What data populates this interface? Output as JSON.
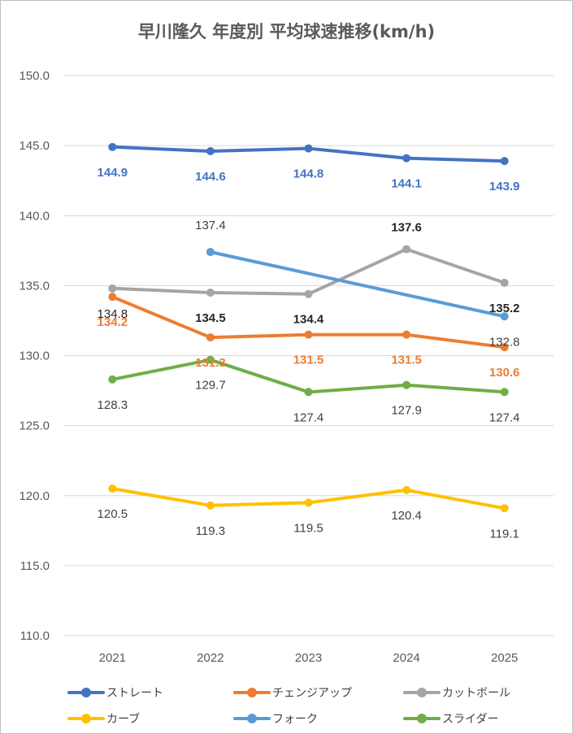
{
  "chart_data": {
    "type": "line",
    "title": "早川隆久 年度別 平均球速推移(km/h)",
    "categories": [
      "2021",
      "2022",
      "2023",
      "2024",
      "2025"
    ],
    "ylim": [
      110,
      150
    ],
    "yticks": [
      "110.0",
      "115.0",
      "120.0",
      "125.0",
      "130.0",
      "135.0",
      "140.0",
      "145.0",
      "150.0"
    ],
    "grid": true,
    "legend_position": "bottom",
    "series": [
      {
        "name": "ストレート",
        "color": "#4472c4",
        "values": [
          144.9,
          144.6,
          144.8,
          144.1,
          143.9
        ],
        "labels": [
          "144.9",
          "144.6",
          "144.8",
          "144.1",
          "143.9"
        ],
        "label_color": "#4472c4"
      },
      {
        "name": "チェンジアップ",
        "color": "#ed7d31",
        "values": [
          134.2,
          131.3,
          131.5,
          131.5,
          130.6
        ],
        "labels": [
          "134.2",
          "131.3",
          "131.5",
          "131.5",
          "130.6"
        ],
        "label_color": "#ed7d31"
      },
      {
        "name": "カットボール",
        "color": "#a5a5a5",
        "values": [
          134.8,
          134.5,
          134.4,
          137.6,
          135.2
        ],
        "labels": [
          "134.8",
          "134.5",
          "134.4",
          "137.6",
          "135.2"
        ],
        "label_color": "#262626"
      },
      {
        "name": "カーブ",
        "color": "#ffc000",
        "values": [
          120.5,
          119.3,
          119.5,
          120.4,
          119.1
        ],
        "labels": [
          "120.5",
          "119.3",
          "119.5",
          "120.4",
          "119.1"
        ],
        "label_color": "#404040"
      },
      {
        "name": "フォーク",
        "color": "#5b9bd5",
        "values": [
          null,
          137.4,
          null,
          null,
          132.8
        ],
        "labels": [
          null,
          "137.4",
          null,
          null,
          "132.8"
        ],
        "label_color": "#404040"
      },
      {
        "name": "スライダー",
        "color": "#70ad47",
        "values": [
          128.3,
          129.7,
          127.4,
          127.9,
          127.4
        ],
        "labels": [
          "128.3",
          "129.7",
          "127.4",
          "127.9",
          "127.4"
        ],
        "label_color": "#404040"
      }
    ]
  }
}
